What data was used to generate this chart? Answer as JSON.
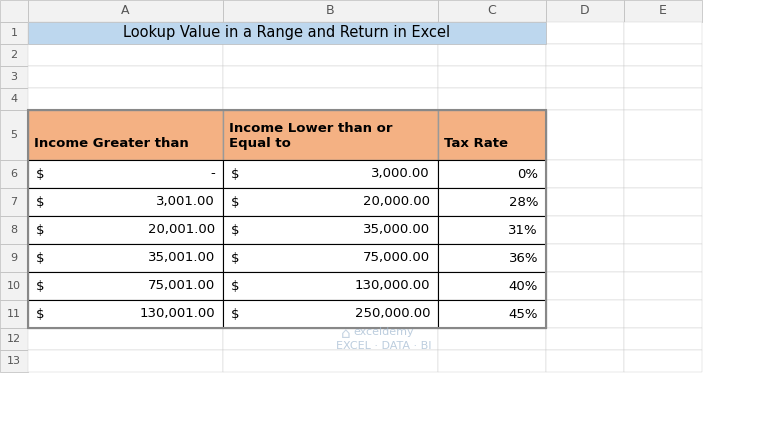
{
  "title": "Lookup Value in a Range and Return in Excel",
  "title_bg": "#BDD7EE",
  "header_bg": "#F4B183",
  "header_labels": [
    "Income Greater than",
    "Income Lower than or\nEqual to",
    "Tax Rate"
  ],
  "col_a_label": "A",
  "col_b_label": "B",
  "col_c_label": "C",
  "col_d_label": "D",
  "col_e_label": "E",
  "row_labels": [
    "1",
    "2",
    "3",
    "4",
    "5",
    "6",
    "7",
    "8",
    "9",
    "10",
    "11",
    "12",
    "13"
  ],
  "data_rows": [
    [
      "$    -",
      "$    3,000.00",
      "0%"
    ],
    [
      "$    3,001.00",
      "$    20,000.00",
      "28%"
    ],
    [
      "$    20,001.00",
      "$    35,000.00",
      "31%"
    ],
    [
      "$    35,001.00",
      "$    75,000.00",
      "36%"
    ],
    [
      "$    75,001.00",
      "$    130,000.00",
      "40%"
    ],
    [
      "$    130,001.00",
      "$    250,000.00",
      "45%"
    ]
  ],
  "cell_bg": "#FFFFFF",
  "grid_color": "#000000",
  "text_color": "#000000",
  "header_text_color": "#000000",
  "row_number_bg": "#F2F2F2",
  "col_header_bg": "#F2F2F2",
  "watermark_text": "exceldemy\nEXCEL · DATA · BI",
  "watermark_color": "#A0B8D0"
}
